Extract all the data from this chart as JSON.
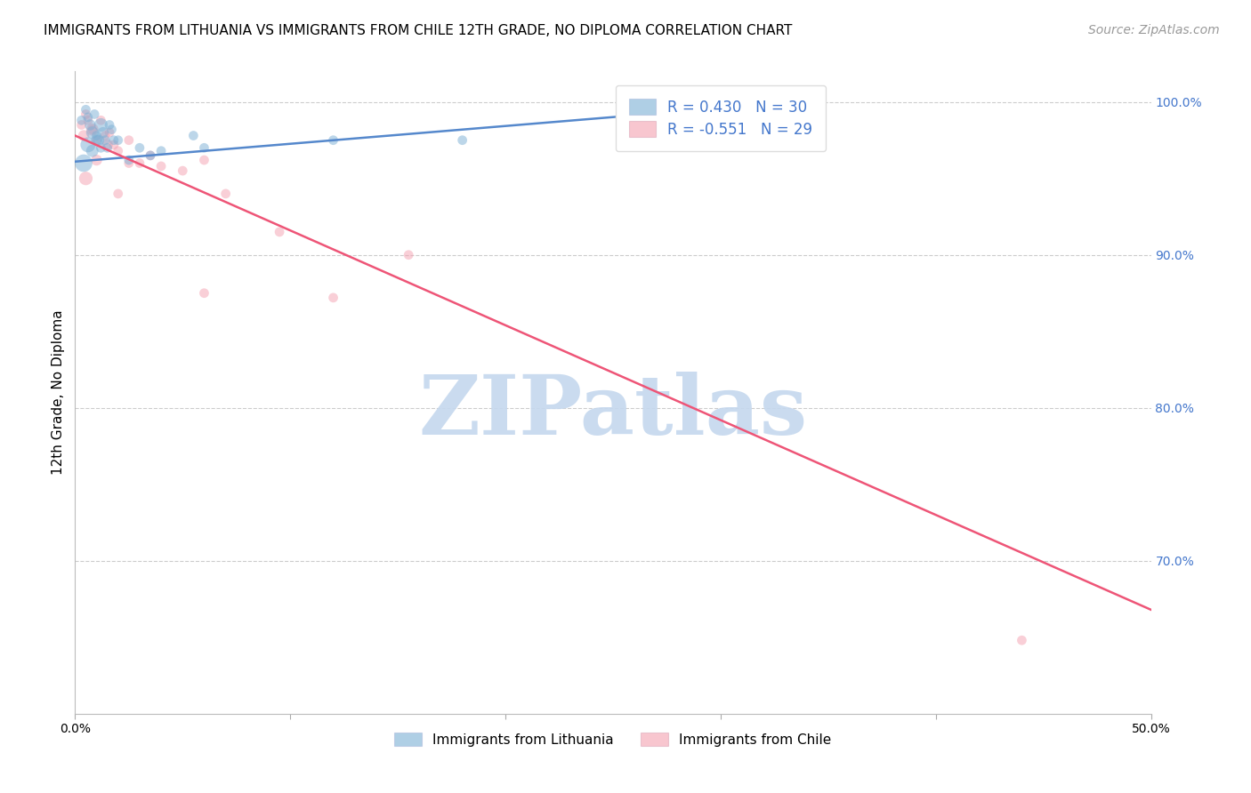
{
  "title": "IMMIGRANTS FROM LITHUANIA VS IMMIGRANTS FROM CHILE 12TH GRADE, NO DIPLOMA CORRELATION CHART",
  "source": "Source: ZipAtlas.com",
  "ylabel": "12th Grade, No Diploma",
  "xlim": [
    0.0,
    0.5
  ],
  "ylim": [
    0.6,
    1.02
  ],
  "xticks": [
    0.0,
    0.1,
    0.2,
    0.3,
    0.4,
    0.5
  ],
  "xtick_labels_show": [
    "0.0%",
    "",
    "",
    "",
    "",
    "50.0%"
  ],
  "yticks": [
    0.7,
    0.8,
    0.9,
    1.0
  ],
  "ytick_labels": [
    "70.0%",
    "80.0%",
    "90.0%",
    "100.0%"
  ],
  "grid_color": "#cccccc",
  "background_color": "#ffffff",
  "lithuania_color": "#7bafd4",
  "chile_color": "#f4a0b0",
  "lithuania_line_color": "#5588cc",
  "chile_line_color": "#ee5577",
  "legend_r_lith": "R = 0.430",
  "legend_n_lith": "N = 30",
  "legend_r_chile": "R = -0.551",
  "legend_n_chile": "N = 29",
  "watermark": "ZIPatlas",
  "watermark_color": "#c5d8ee",
  "title_fontsize": 11,
  "axis_label_fontsize": 11,
  "tick_fontsize": 10,
  "source_fontsize": 10,
  "legend_fontsize": 12,
  "right_tick_color": "#4477cc",
  "bottom_legend_items": [
    "Immigrants from Lithuania",
    "Immigrants from Chile"
  ],
  "lithuania_scatter_x": [
    0.003,
    0.005,
    0.006,
    0.007,
    0.008,
    0.009,
    0.01,
    0.011,
    0.012,
    0.013,
    0.014,
    0.015,
    0.016,
    0.017,
    0.018,
    0.004,
    0.006,
    0.008,
    0.01,
    0.012,
    0.02,
    0.025,
    0.03,
    0.035,
    0.04,
    0.055,
    0.06,
    0.12,
    0.18,
    0.33
  ],
  "lithuania_scatter_y": [
    0.988,
    0.995,
    0.99,
    0.985,
    0.98,
    0.992,
    0.978,
    0.975,
    0.985,
    0.98,
    0.975,
    0.97,
    0.985,
    0.982,
    0.975,
    0.96,
    0.972,
    0.968,
    0.975,
    0.97,
    0.975,
    0.962,
    0.97,
    0.965,
    0.968,
    0.978,
    0.97,
    0.975,
    0.975,
    1.0
  ],
  "lithuania_sizes": [
    60,
    60,
    60,
    80,
    100,
    60,
    60,
    80,
    120,
    80,
    60,
    60,
    60,
    60,
    60,
    200,
    150,
    100,
    80,
    60,
    60,
    60,
    60,
    60,
    60,
    60,
    60,
    60,
    60,
    100
  ],
  "chile_scatter_x": [
    0.003,
    0.005,
    0.006,
    0.008,
    0.01,
    0.012,
    0.014,
    0.016,
    0.018,
    0.02,
    0.025,
    0.03,
    0.035,
    0.04,
    0.05,
    0.06,
    0.07,
    0.004,
    0.008,
    0.015,
    0.025,
    0.005,
    0.01,
    0.02,
    0.155,
    0.12,
    0.44,
    0.095,
    0.06
  ],
  "chile_scatter_y": [
    0.985,
    0.992,
    0.988,
    0.982,
    0.975,
    0.988,
    0.978,
    0.98,
    0.972,
    0.968,
    0.975,
    0.96,
    0.965,
    0.958,
    0.955,
    0.962,
    0.94,
    0.978,
    0.982,
    0.972,
    0.96,
    0.95,
    0.962,
    0.94,
    0.9,
    0.872,
    0.648,
    0.915,
    0.875
  ],
  "chile_sizes": [
    60,
    60,
    60,
    60,
    60,
    60,
    60,
    60,
    60,
    60,
    60,
    60,
    60,
    60,
    60,
    60,
    60,
    80,
    100,
    80,
    60,
    120,
    80,
    60,
    60,
    60,
    60,
    60,
    60
  ],
  "lith_trend_x": [
    0.0,
    0.335
  ],
  "lith_trend_y": [
    0.961,
    1.0
  ],
  "chile_trend_x": [
    0.0,
    0.5
  ],
  "chile_trend_y": [
    0.978,
    0.668
  ]
}
